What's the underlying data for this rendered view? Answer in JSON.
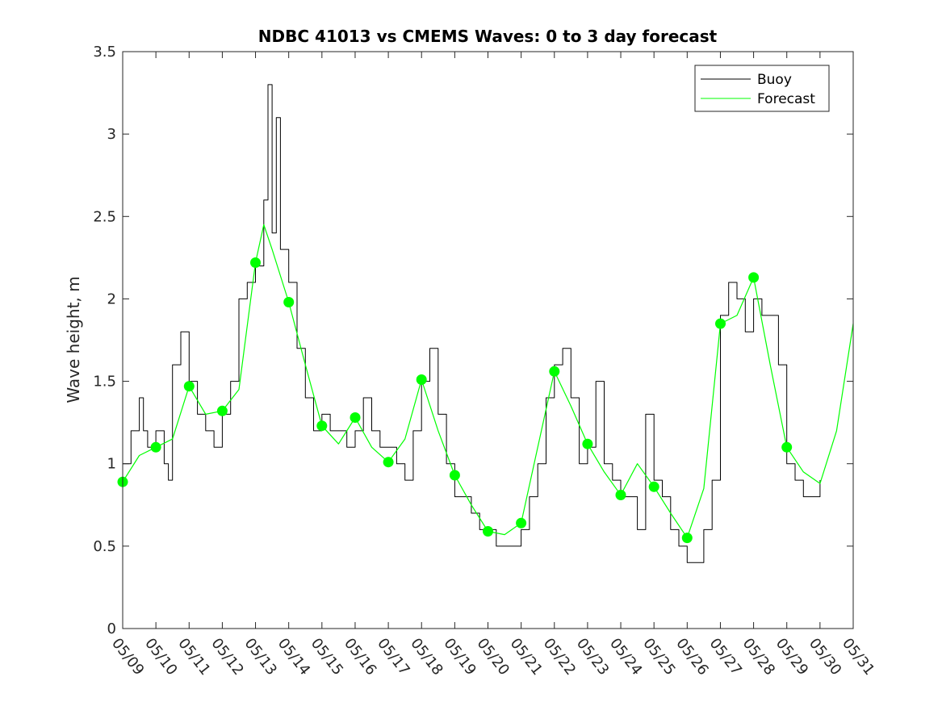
{
  "chart_data": {
    "type": "line",
    "title": "NDBC 41013 vs CMEMS Waves: 0 to 3 day forecast",
    "xlabel": "",
    "ylabel": "Wave height, m",
    "x_unit": "days",
    "x_ticks": [
      "05/09",
      "05/10",
      "05/11",
      "05/12",
      "05/13",
      "05/14",
      "05/15",
      "05/16",
      "05/17",
      "05/18",
      "05/19",
      "05/20",
      "05/21",
      "05/22",
      "05/23",
      "05/24",
      "05/25",
      "05/26",
      "05/27",
      "05/28",
      "05/29",
      "05/30",
      "05/31"
    ],
    "xlim": [
      "05/09",
      "05/31"
    ],
    "ylim": [
      0,
      3.5
    ],
    "y_ticks": [
      0,
      0.5,
      1,
      1.5,
      2,
      2.5,
      3,
      3.5
    ],
    "grid": false,
    "legend": {
      "position": "top-right",
      "entries": [
        "Buoy",
        "Forecast"
      ]
    },
    "colors": {
      "buoy": "#000000",
      "forecast": "#00ff00"
    },
    "series": [
      {
        "name": "Buoy",
        "x": [
          "05/09 00:00",
          "05/09 06:00",
          "05/09 12:00",
          "05/09 15:00",
          "05/09 18:00",
          "05/10 00:00",
          "05/10 06:00",
          "05/10 09:00",
          "05/10 12:00",
          "05/10 18:00",
          "05/11 00:00",
          "05/11 06:00",
          "05/11 12:00",
          "05/11 18:00",
          "05/12 00:00",
          "05/12 06:00",
          "05/12 12:00",
          "05/12 18:00",
          "05/13 00:00",
          "05/13 06:00",
          "05/13 09:00",
          "05/13 12:00",
          "05/13 15:00",
          "05/13 18:00",
          "05/14 00:00",
          "05/14 06:00",
          "05/14 12:00",
          "05/14 18:00",
          "05/15 00:00",
          "05/15 06:00",
          "05/15 12:00",
          "05/15 18:00",
          "05/16 00:00",
          "05/16 06:00",
          "05/16 12:00",
          "05/16 18:00",
          "05/17 00:00",
          "05/17 06:00",
          "05/17 12:00",
          "05/17 18:00",
          "05/18 00:00",
          "05/18 06:00",
          "05/18 12:00",
          "05/18 18:00",
          "05/19 00:00",
          "05/19 06:00",
          "05/19 12:00",
          "05/19 18:00",
          "05/20 00:00",
          "05/20 06:00",
          "05/20 12:00",
          "05/20 18:00",
          "05/21 00:00",
          "05/21 06:00",
          "05/21 12:00",
          "05/21 18:00",
          "05/22 00:00",
          "05/22 06:00",
          "05/22 12:00",
          "05/22 18:00",
          "05/23 00:00",
          "05/23 06:00",
          "05/23 12:00",
          "05/23 18:00",
          "05/24 00:00",
          "05/24 06:00",
          "05/24 12:00",
          "05/24 18:00",
          "05/25 00:00",
          "05/25 06:00",
          "05/25 12:00",
          "05/25 18:00",
          "05/26 00:00",
          "05/26 06:00",
          "05/26 12:00",
          "05/26 18:00",
          "05/27 00:00",
          "05/27 06:00",
          "05/27 12:00",
          "05/27 18:00",
          "05/28 00:00",
          "05/28 06:00",
          "05/28 12:00",
          "05/28 18:00",
          "05/29 00:00",
          "05/29 06:00",
          "05/29 12:00",
          "05/29 18:00",
          "05/30 00:00"
        ],
        "y": [
          1.0,
          1.2,
          1.4,
          1.2,
          1.1,
          1.2,
          1.0,
          0.9,
          1.6,
          1.8,
          1.5,
          1.3,
          1.2,
          1.1,
          1.3,
          1.5,
          2.0,
          2.1,
          2.2,
          2.6,
          3.3,
          2.4,
          3.1,
          2.3,
          2.1,
          1.7,
          1.4,
          1.2,
          1.3,
          1.2,
          1.2,
          1.1,
          1.2,
          1.4,
          1.2,
          1.1,
          1.1,
          1.0,
          0.9,
          1.2,
          1.5,
          1.7,
          1.3,
          1.0,
          0.8,
          0.8,
          0.7,
          0.6,
          0.6,
          0.5,
          0.5,
          0.5,
          0.6,
          0.8,
          1.0,
          1.4,
          1.6,
          1.7,
          1.4,
          1.0,
          1.1,
          1.5,
          1.0,
          0.9,
          0.8,
          0.8,
          0.6,
          1.3,
          0.9,
          0.8,
          0.6,
          0.5,
          0.4,
          0.4,
          0.6,
          0.9,
          1.9,
          2.1,
          2.0,
          1.8,
          2.0,
          1.9,
          1.9,
          1.6,
          1.0,
          0.9,
          0.8,
          0.8,
          0.9
        ]
      },
      {
        "name": "Forecast",
        "x": [
          "05/09 00:00",
          "05/09 12:00",
          "05/10 00:00",
          "05/10 12:00",
          "05/11 00:00",
          "05/11 12:00",
          "05/12 00:00",
          "05/12 12:00",
          "05/13 00:00",
          "05/13 06:00",
          "05/13 12:00",
          "05/14 00:00",
          "05/14 12:00",
          "05/15 00:00",
          "05/15 12:00",
          "05/16 00:00",
          "05/16 12:00",
          "05/17 00:00",
          "05/17 12:00",
          "05/18 00:00",
          "05/18 12:00",
          "05/19 00:00",
          "05/19 12:00",
          "05/20 00:00",
          "05/20 12:00",
          "05/21 00:00",
          "05/21 12:00",
          "05/22 00:00",
          "05/22 12:00",
          "05/23 00:00",
          "05/23 12:00",
          "05/24 00:00",
          "05/24 12:00",
          "05/25 00:00",
          "05/25 12:00",
          "05/26 00:00",
          "05/26 12:00",
          "05/27 00:00",
          "05/27 12:00",
          "05/28 00:00",
          "05/28 12:00",
          "05/29 00:00",
          "05/29 12:00",
          "05/30 00:00",
          "05/30 12:00",
          "05/31 00:00"
        ],
        "y": [
          0.89,
          1.05,
          1.1,
          1.15,
          1.47,
          1.3,
          1.32,
          1.45,
          2.22,
          2.45,
          2.3,
          1.98,
          1.6,
          1.23,
          1.12,
          1.28,
          1.1,
          1.01,
          1.15,
          1.51,
          1.2,
          0.93,
          0.75,
          0.59,
          0.57,
          0.64,
          1.1,
          1.56,
          1.35,
          1.12,
          0.95,
          0.81,
          1.0,
          0.86,
          0.7,
          0.55,
          0.85,
          1.85,
          1.9,
          2.13,
          1.6,
          1.1,
          0.95,
          0.88,
          1.2,
          1.85
        ]
      }
    ],
    "markers": {
      "series": "Forecast",
      "x": [
        "05/09",
        "05/10",
        "05/11",
        "05/12",
        "05/13",
        "05/14",
        "05/15",
        "05/16",
        "05/17",
        "05/18",
        "05/19",
        "05/20",
        "05/21",
        "05/22",
        "05/23",
        "05/24",
        "05/25",
        "05/26",
        "05/27",
        "05/28",
        "05/29"
      ],
      "y": [
        0.89,
        1.1,
        1.47,
        1.32,
        2.22,
        1.98,
        1.23,
        1.28,
        1.01,
        1.51,
        0.93,
        0.59,
        0.64,
        1.56,
        1.12,
        0.81,
        0.86,
        0.55,
        1.85,
        2.13,
        1.1
      ]
    }
  }
}
